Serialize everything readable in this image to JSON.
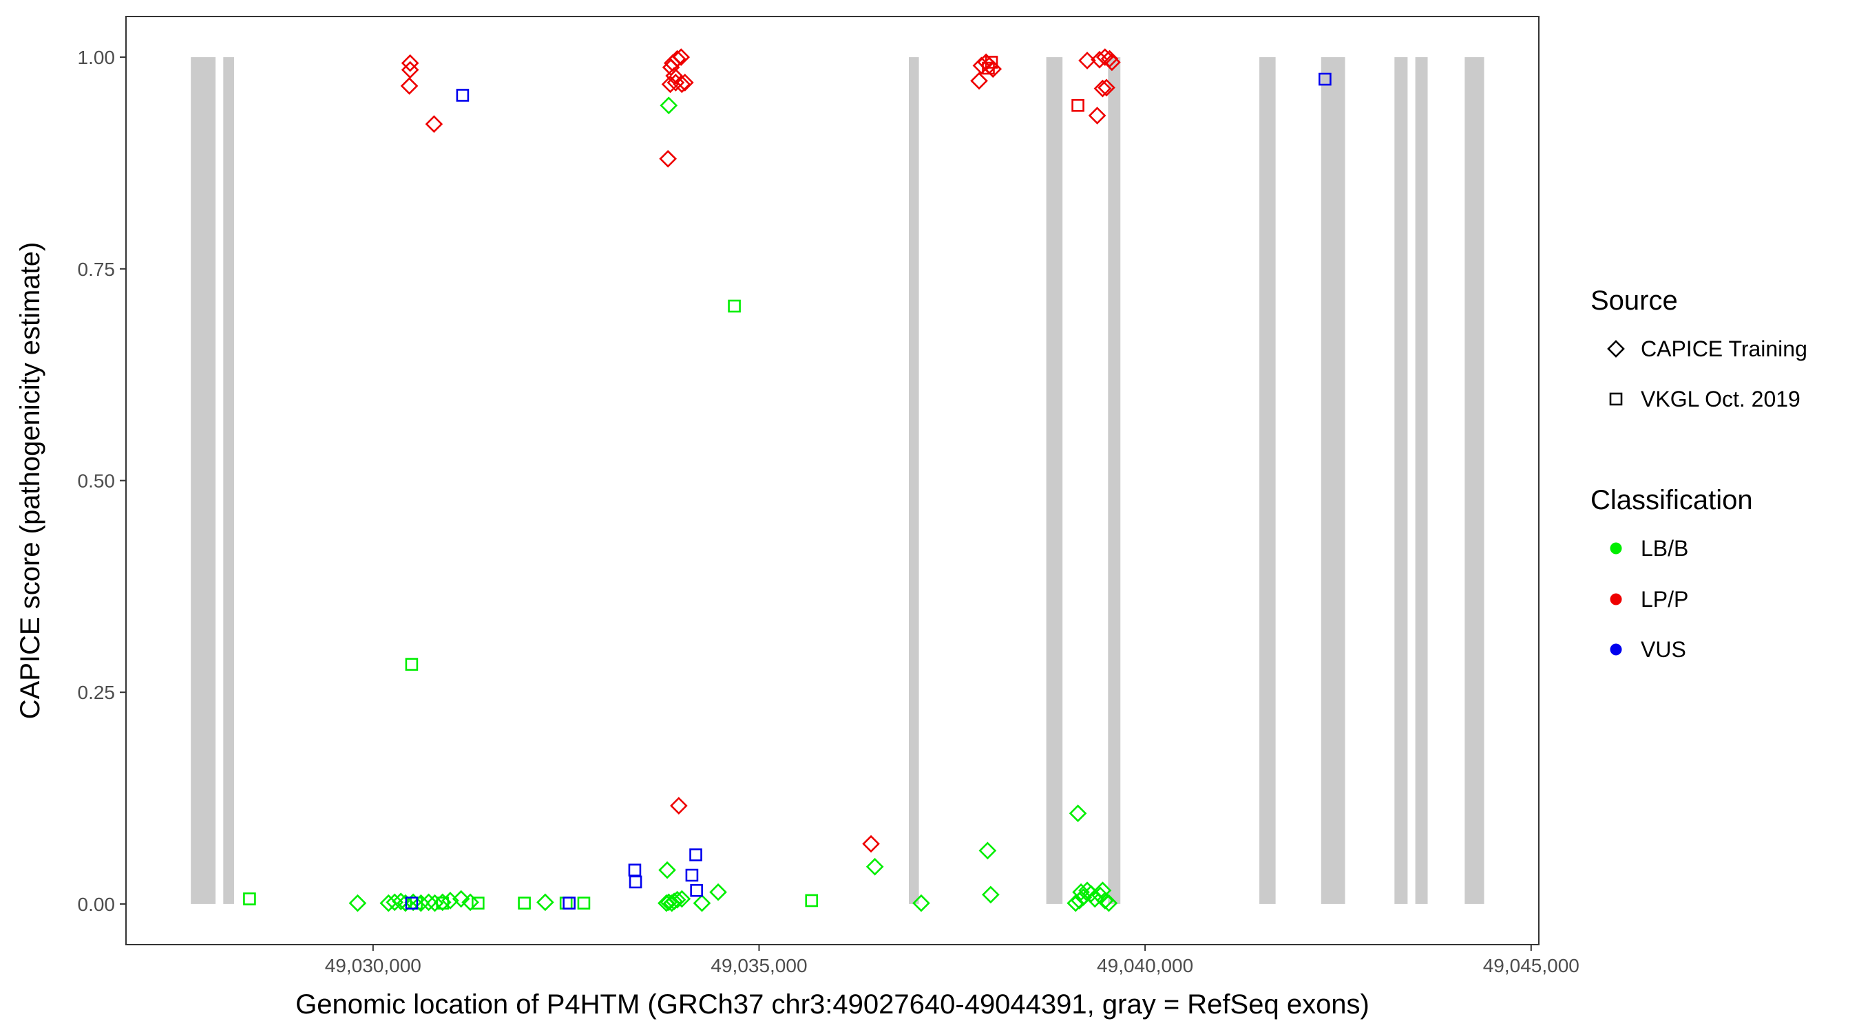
{
  "chart_data": {
    "type": "scatter",
    "title": "",
    "xlabel": "Genomic location of P4HTM (GRCh37 chr3:49027640-49044391, gray = RefSeq exons)",
    "ylabel": "CAPICE score (pathogenicity estimate)",
    "xlim": [
      49026800,
      49045100
    ],
    "ylim": [
      -0.048,
      1.048
    ],
    "x_ticks": [
      49030000,
      49035000,
      49040000,
      49045000
    ],
    "x_tick_labels": [
      "49,030,000",
      "49,035,000",
      "49,040,000",
      "49,045,000"
    ],
    "y_ticks": [
      0,
      0.25,
      0.5,
      0.75,
      1.0
    ],
    "y_tick_labels": [
      "0.00",
      "0.25",
      "0.50",
      "0.75",
      "1.00"
    ],
    "grid": false,
    "exons": [
      [
        49027640,
        49027960
      ],
      [
        49028060,
        49028200
      ],
      [
        49036940,
        49037070
      ],
      [
        49038720,
        49038930
      ],
      [
        49039520,
        49039680
      ],
      [
        49041480,
        49041690
      ],
      [
        49042280,
        49042590
      ],
      [
        49043230,
        49043400
      ],
      [
        49043500,
        49043660
      ],
      [
        49044140,
        49044391
      ]
    ],
    "exon_color": "#cbcbcb",
    "legend": {
      "placement": "right",
      "source_title": "Source",
      "source_entries": [
        {
          "label": "CAPICE Training",
          "shape": "diamond"
        },
        {
          "label": "VKGL Oct. 2019",
          "shape": "square"
        }
      ],
      "class_title": "Classification",
      "class_entries": [
        {
          "label": "LB/B",
          "color": "#00ee00"
        },
        {
          "label": "LP/P",
          "color": "#ee0000"
        },
        {
          "label": "VUS",
          "color": "#0000ee"
        }
      ]
    },
    "series": [
      {
        "source": "CAPICE Training",
        "classification": "LP/P",
        "points": [
          [
            49030480,
            0.993
          ],
          [
            49030480,
            0.985
          ],
          [
            49030470,
            0.966
          ],
          [
            49030790,
            0.921
          ],
          [
            49033880,
            0.993
          ],
          [
            49033940,
            0.998
          ],
          [
            49033990,
            1.0
          ],
          [
            49033860,
            0.988
          ],
          [
            49033900,
            0.978
          ],
          [
            49033850,
            0.968
          ],
          [
            49033920,
            0.97
          ],
          [
            49034000,
            0.968
          ],
          [
            49034040,
            0.97
          ],
          [
            49033820,
            0.88
          ],
          [
            49033960,
            0.116
          ],
          [
            49036450,
            0.071
          ],
          [
            49037880,
            0.99
          ],
          [
            49037940,
            0.994
          ],
          [
            49037980,
            0.99
          ],
          [
            49038030,
            0.986
          ],
          [
            49037850,
            0.972
          ],
          [
            49039250,
            0.996
          ],
          [
            49039410,
            0.997
          ],
          [
            49039480,
            1.0
          ],
          [
            49039540,
            0.998
          ],
          [
            49039570,
            0.994
          ],
          [
            49039450,
            0.963
          ],
          [
            49039500,
            0.964
          ],
          [
            49039380,
            0.931
          ]
        ]
      },
      {
        "source": "CAPICE Training",
        "classification": "LB/B",
        "points": [
          [
            49029800,
            0.001
          ],
          [
            49030200,
            0.001
          ],
          [
            49030280,
            0.002
          ],
          [
            49030360,
            0.003
          ],
          [
            49030420,
            0.001
          ],
          [
            49030520,
            0.002
          ],
          [
            49030620,
            0.001
          ],
          [
            49030720,
            0.002
          ],
          [
            49030800,
            0.001
          ],
          [
            49030900,
            0.002
          ],
          [
            49031000,
            0.004
          ],
          [
            49031140,
            0.006
          ],
          [
            49031260,
            0.002
          ],
          [
            49032230,
            0.002
          ],
          [
            49033830,
            0.943
          ],
          [
            49033800,
            0.001
          ],
          [
            49033830,
            0.002
          ],
          [
            49033870,
            0.001
          ],
          [
            49033900,
            0.003
          ],
          [
            49033940,
            0.005
          ],
          [
            49034000,
            0.006
          ],
          [
            49033810,
            0.04
          ],
          [
            49034260,
            0.001
          ],
          [
            49034470,
            0.014
          ],
          [
            49036500,
            0.044
          ],
          [
            49037100,
            0.001
          ],
          [
            49037960,
            0.063
          ],
          [
            49038000,
            0.011
          ],
          [
            49039130,
            0.107
          ],
          [
            49039100,
            0.001
          ],
          [
            49039150,
            0.004
          ],
          [
            49039200,
            0.008
          ],
          [
            49039250,
            0.016
          ],
          [
            49039300,
            0.012
          ],
          [
            49039350,
            0.006
          ],
          [
            49039420,
            0.01
          ],
          [
            49039450,
            0.016
          ],
          [
            49039480,
            0.004
          ],
          [
            49039530,
            0.001
          ],
          [
            49039170,
            0.014
          ]
        ]
      },
      {
        "source": "VKGL Oct. 2019",
        "classification": "LB/B",
        "points": [
          [
            49028400,
            0.006
          ],
          [
            49030500,
            0.283
          ],
          [
            49030560,
            0.001
          ],
          [
            49030900,
            0.001
          ],
          [
            49031360,
            0.001
          ],
          [
            49031960,
            0.001
          ],
          [
            49032500,
            0.001
          ],
          [
            49032730,
            0.001
          ],
          [
            49034680,
            0.706
          ],
          [
            49035680,
            0.004
          ]
        ]
      },
      {
        "source": "VKGL Oct. 2019",
        "classification": "LP/P",
        "points": [
          [
            49038010,
            0.994
          ],
          [
            49037970,
            0.987
          ],
          [
            49039130,
            0.943
          ]
        ]
      },
      {
        "source": "VKGL Oct. 2019",
        "classification": "VUS",
        "points": [
          [
            49031160,
            0.955
          ],
          [
            49030500,
            0.001
          ],
          [
            49032540,
            0.001
          ],
          [
            49033390,
            0.04
          ],
          [
            49033400,
            0.026
          ],
          [
            49034130,
            0.034
          ],
          [
            49034180,
            0.058
          ],
          [
            49034190,
            0.016
          ],
          [
            49042330,
            0.974
          ]
        ]
      }
    ]
  }
}
